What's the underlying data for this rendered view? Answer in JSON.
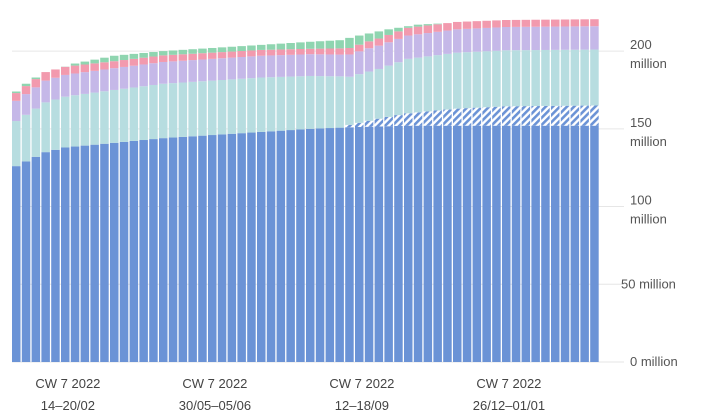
{
  "chart_data": {
    "type": "bar",
    "stacked": true,
    "grid": true,
    "y_axis_position": "right",
    "ylim": [
      0,
      220000000
    ],
    "y_ticks": [
      {
        "value": 0,
        "line1": "0 million",
        "line2": ""
      },
      {
        "value": 50000000,
        "line1": "50 million",
        "line2": ""
      },
      {
        "value": 100000000,
        "line1": "100",
        "line2": "million"
      },
      {
        "value": 150000000,
        "line1": "150",
        "line2": "million"
      },
      {
        "value": 200000000,
        "line1": "200",
        "line2": "million"
      }
    ],
    "x_ticks": [
      {
        "index": 5,
        "line1": "CW 7 2022",
        "line2": "14–20/02"
      },
      {
        "index": 20,
        "line1": "CW 7 2022",
        "line2": "30/05–05/06"
      },
      {
        "index": 35,
        "line1": "CW 7 2022",
        "line2": "12–18/09"
      },
      {
        "index": 50,
        "line1": "CW 7 2022",
        "line2": "26/12–01/01"
      }
    ],
    "n_bars": 60,
    "hatch_start_index": 33,
    "total_anchors": [
      [
        0,
        174000000
      ],
      [
        1,
        179000000
      ],
      [
        2,
        183000000
      ],
      [
        4,
        188000000
      ],
      [
        6,
        192000000
      ],
      [
        10,
        197000000
      ],
      [
        15,
        200000000
      ],
      [
        20,
        202000000
      ],
      [
        25,
        204000000
      ],
      [
        30,
        206000000
      ],
      [
        33,
        207000000
      ],
      [
        35,
        210000000
      ],
      [
        38,
        214000000
      ],
      [
        41,
        217000000
      ],
      [
        44,
        218000000
      ],
      [
        50,
        219000000
      ],
      [
        59,
        219000000
      ]
    ],
    "series": [
      {
        "color": "#6b93d6",
        "anchors": [
          [
            0,
            126000000
          ],
          [
            1,
            129000000
          ],
          [
            2,
            132000000
          ],
          [
            3,
            135000000
          ],
          [
            5,
            138000000
          ],
          [
            10,
            141000000
          ],
          [
            15,
            144000000
          ],
          [
            20,
            146000000
          ],
          [
            25,
            148000000
          ],
          [
            30,
            150000000
          ],
          [
            34,
            151000000
          ],
          [
            40,
            152000000
          ],
          [
            59,
            152000000
          ]
        ]
      },
      {
        "color": "#6b93d6",
        "hatched": true,
        "anchors": [
          [
            0,
            0
          ],
          [
            33,
            0
          ],
          [
            34,
            1500000
          ],
          [
            37,
            5000000
          ],
          [
            40,
            8000000
          ],
          [
            45,
            11000000
          ],
          [
            50,
            12500000
          ],
          [
            59,
            13000000
          ]
        ]
      },
      {
        "color": "#b7dde0",
        "anchors": [
          [
            0,
            29000000
          ],
          [
            1,
            30000000
          ],
          [
            3,
            32000000
          ],
          [
            6,
            33000000
          ],
          [
            10,
            34000000
          ],
          [
            15,
            35000000
          ],
          [
            20,
            35000000
          ],
          [
            25,
            35000000
          ],
          [
            30,
            34000000
          ],
          [
            33,
            33000000
          ],
          [
            34,
            31000000
          ],
          [
            37,
            32000000
          ],
          [
            40,
            35000000
          ],
          [
            45,
            36000000
          ],
          [
            50,
            36000000
          ],
          [
            59,
            36000000
          ]
        ]
      },
      {
        "color": "#c5b8e8",
        "anchors": [
          [
            0,
            13000000
          ],
          [
            3,
            14000000
          ],
          [
            10,
            14000000
          ],
          [
            20,
            14000000
          ],
          [
            30,
            14000000
          ],
          [
            33,
            14000000
          ],
          [
            36,
            15000000
          ],
          [
            40,
            15000000
          ],
          [
            50,
            15000000
          ],
          [
            59,
            15000000
          ]
        ]
      },
      {
        "color": "#f29aae",
        "anchors": [
          [
            0,
            5000000
          ],
          [
            3,
            5500000
          ],
          [
            10,
            4500000
          ],
          [
            20,
            4000000
          ],
          [
            30,
            3500000
          ],
          [
            33,
            4000000
          ],
          [
            40,
            5000000
          ],
          [
            50,
            4500000
          ],
          [
            59,
            4500000
          ]
        ]
      }
    ],
    "top_series": {
      "color": "#8fd5b0"
    }
  }
}
